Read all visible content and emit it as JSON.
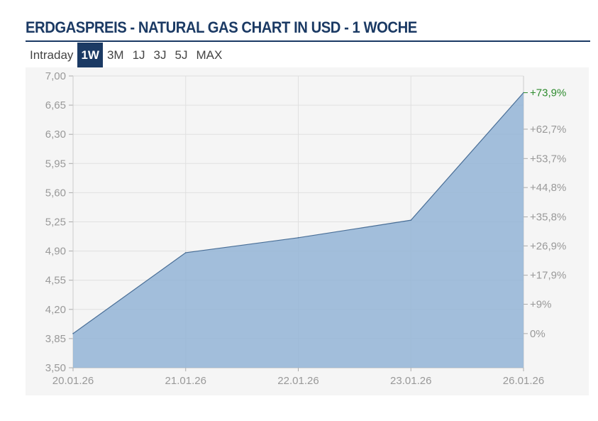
{
  "header": {
    "title": "ERDGASPREIS - NATURAL GAS CHART IN USD - 1 WOCHE"
  },
  "tabs": [
    {
      "label": "Intraday",
      "active": false
    },
    {
      "label": "1W",
      "active": true
    },
    {
      "label": "3M",
      "active": false
    },
    {
      "label": "1J",
      "active": false
    },
    {
      "label": "3J",
      "active": false
    },
    {
      "label": "5J",
      "active": false
    },
    {
      "label": "MAX",
      "active": false
    }
  ],
  "colors": {
    "brand": "#1b3a64",
    "area_fill": "#93b4d6",
    "line": "#4a6f97",
    "positive": "#2e8b2e",
    "axis_text": "#999999"
  },
  "chart_data": {
    "type": "area",
    "x": [
      "20.01.26",
      "21.01.26",
      "22.01.26",
      "23.01.26",
      "26.01.26"
    ],
    "series": [
      {
        "values": [
          3.91,
          4.88,
          5.06,
          5.27,
          6.8
        ]
      }
    ],
    "ylim": [
      3.5,
      7.0
    ],
    "y_ticks": [
      "7,00",
      "6,65",
      "6,30",
      "5,95",
      "5,60",
      "5,25",
      "4,90",
      "4,55",
      "4,20",
      "3,85",
      "3,50"
    ],
    "y_tick_values": [
      7.0,
      6.65,
      6.3,
      5.95,
      5.6,
      5.25,
      4.9,
      4.55,
      4.2,
      3.85,
      3.5
    ],
    "right_axis": {
      "base_value": 3.91,
      "ticks": [
        "0%",
        "+9%",
        "+17,9%",
        "+26,9%",
        "+35,8%",
        "+44,8%",
        "+53,7%",
        "+62,7%"
      ],
      "tick_percents": [
        0,
        9,
        17.9,
        26.9,
        35.8,
        44.8,
        53.7,
        62.7
      ],
      "last_label": "+73,9%",
      "last_percent": 73.9
    },
    "grid": true
  }
}
